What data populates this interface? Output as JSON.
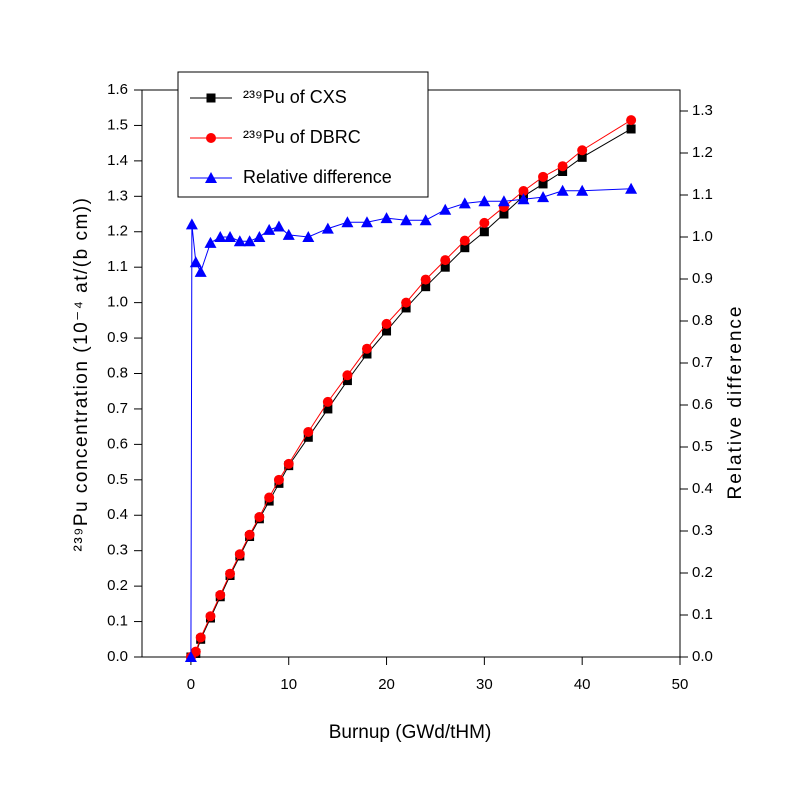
{
  "chart_data": {
    "type": "line",
    "x_label": "Burnup (GWd/tHM)",
    "y_label": "²³⁹Pu concentration (10⁻⁴ at/(b cm))",
    "y2_label": "Relative difference",
    "xlim": [
      -5,
      50
    ],
    "xticks": [
      0,
      10,
      20,
      30,
      40,
      50
    ],
    "ylim": [
      0,
      1.6
    ],
    "yticks": [
      {
        "value": 0,
        "label": "0.0"
      },
      0.1,
      0.2,
      0.3,
      0.4,
      0.5,
      0.6,
      0.7,
      0.8,
      0.9,
      {
        "value": 1,
        "label": "1.0"
      },
      1.1,
      1.2,
      1.3,
      1.4,
      1.5,
      1.6
    ],
    "y2lim": [
      0,
      1.35
    ],
    "y2ticks": [
      {
        "value": 0,
        "label": "0.0"
      },
      0.1,
      0.2,
      0.3,
      0.4,
      0.5,
      0.6,
      0.7,
      0.8,
      0.9,
      {
        "value": 1,
        "label": "1.0"
      },
      1.1,
      1.2,
      1.3
    ],
    "legend": "upper-left",
    "series": [
      {
        "name": "²³⁹Pu of CXS",
        "color": "#000000",
        "marker": "square",
        "x": [
          0,
          0.5,
          1,
          2,
          3,
          4,
          5,
          6,
          7,
          8,
          9,
          10,
          12,
          14,
          16,
          18,
          20,
          22,
          24,
          26,
          28,
          30,
          32,
          34,
          36,
          38,
          40,
          45
        ],
        "values": [
          0,
          0.01,
          0.05,
          0.11,
          0.17,
          0.23,
          0.285,
          0.34,
          0.39,
          0.44,
          0.49,
          0.54,
          0.62,
          0.7,
          0.78,
          0.855,
          0.92,
          0.985,
          1.045,
          1.1,
          1.155,
          1.2,
          1.25,
          1.3,
          1.335,
          1.37,
          1.41,
          1.49
        ]
      },
      {
        "name": "²³⁹Pu of DBRC",
        "color": "#ff0000",
        "marker": "circle",
        "x": [
          0,
          0.5,
          1,
          2,
          3,
          4,
          5,
          6,
          7,
          8,
          9,
          10,
          12,
          14,
          16,
          18,
          20,
          22,
          24,
          26,
          28,
          30,
          32,
          34,
          36,
          38,
          40,
          45
        ],
        "values": [
          0,
          0.015,
          0.055,
          0.115,
          0.175,
          0.235,
          0.29,
          0.345,
          0.395,
          0.45,
          0.5,
          0.545,
          0.635,
          0.72,
          0.795,
          0.87,
          0.94,
          1.0,
          1.065,
          1.12,
          1.175,
          1.225,
          1.27,
          1.315,
          1.355,
          1.385,
          1.43,
          1.515
        ]
      },
      {
        "name": "Relative difference",
        "color": "#0000ff",
        "marker": "triangle",
        "axis": "y2",
        "x": [
          0,
          0.1,
          0.5,
          1,
          2,
          3,
          4,
          5,
          6,
          7,
          8,
          9,
          10,
          12,
          14,
          16,
          18,
          20,
          22,
          24,
          26,
          28,
          30,
          32,
          34,
          36,
          38,
          40,
          45
        ],
        "values": [
          0,
          1.03,
          0.94,
          0.917,
          0.986,
          1.0,
          1.0,
          0.99,
          0.99,
          1.0,
          1.017,
          1.025,
          1.005,
          1.0,
          1.02,
          1.035,
          1.035,
          1.045,
          1.04,
          1.04,
          1.065,
          1.08,
          1.085,
          1.085,
          1.09,
          1.095,
          1.11,
          1.11,
          1.115
        ]
      }
    ]
  }
}
